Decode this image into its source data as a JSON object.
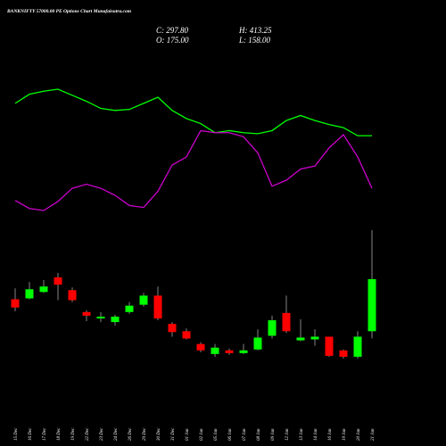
{
  "chart_data": {
    "type": "candlestick",
    "title": "BANKNIFTY 57000.00 PE Options Chart Munafaisutra.com",
    "summary": {
      "close": "C: 297.80",
      "high": "H: 413.25",
      "open": "O: 175.00",
      "low": "L: 158.00"
    },
    "categories": [
      "15 Dec",
      "16 Dec",
      "17 Dec",
      "18 Dec",
      "19 Dec",
      "22 Dec",
      "23 Dec",
      "24 Dec",
      "26 Dec",
      "29 Dec",
      "30 Dec",
      "31 Dec",
      "01 Jan",
      "02 Jan",
      "05 Jan",
      "06 Jan",
      "07 Jan",
      "08 Jan",
      "09 Jan",
      "12 Jan",
      "13 Jan",
      "14 Jan",
      "16 Jan",
      "19 Jan",
      "20 Jan",
      "21 Jan"
    ],
    "open": [
      250.3,
      252.4,
      267.5,
      301.9,
      271.8,
      220.2,
      205.1,
      196.5,
      220.2,
      237.4,
      258.9,
      192.2,
      175,
      144.9,
      121.3,
      129.9,
      123.4,
      132,
      164.3,
      218,
      153.5,
      155.7,
      162.1,
      129.9,
      114.8,
      175
    ],
    "high": [
      276.1,
      291.1,
      295.4,
      312.6,
      278.2,
      224.5,
      220.2,
      213.7,
      243.8,
      265.3,
      280.4,
      196.5,
      181.5,
      149.2,
      144.9,
      134.2,
      144.9,
      179.3,
      211.6,
      258.9,
      203,
      179.3,
      162.1,
      132,
      175,
      413.25
    ],
    "low": [
      222.3,
      250.3,
      265.3,
      248.1,
      243.8,
      198.7,
      196.5,
      187.9,
      215.9,
      233.1,
      200.8,
      162.1,
      155.7,
      125.6,
      114.8,
      119.1,
      121.3,
      129.9,
      157.8,
      170.7,
      151.4,
      140.6,
      114.8,
      110.5,
      110.5,
      158
    ],
    "close": [
      230.9,
      273.9,
      280.4,
      284.7,
      248.1,
      211.6,
      209.4,
      209.4,
      235.2,
      258.9,
      205.1,
      172.9,
      157.8,
      129.9,
      136.3,
      123.4,
      129.9,
      160,
      200.8,
      175,
      160,
      162.1,
      117,
      114.8,
      162.1,
      297.8
    ],
    "up_color": "#00ff00",
    "down_color": "#ff0000",
    "series": [
      {
        "color": "#00ff00",
        "values": [
          379,
          388,
          391,
          393,
          387,
          381,
          374,
          372,
          373,
          379,
          385,
          372,
          364,
          359,
          350,
          352,
          350,
          349,
          352,
          362,
          367,
          362,
          358,
          355,
          347,
          347
        ]
      },
      {
        "color": "#cc00cc",
        "values": [
          283,
          275,
          273,
          282,
          295,
          299,
          295,
          288,
          278,
          276,
          292,
          318,
          326,
          352,
          350,
          350,
          346,
          330,
          297,
          303,
          314,
          317,
          335,
          348,
          326,
          295
        ]
      }
    ]
  }
}
